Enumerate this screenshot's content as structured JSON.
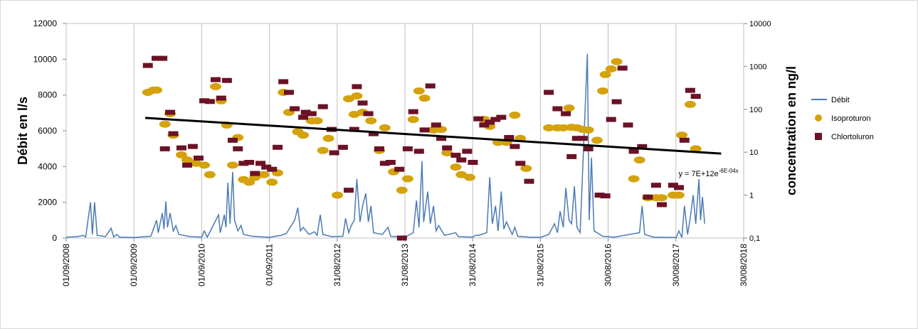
{
  "chart_data": {
    "type": "combo",
    "y_label": "Débit en l/s",
    "y2_label": "concentration en ng/l",
    "xlim": [
      "01/09/2008",
      "30/08/2018"
    ],
    "xticks": [
      "01/09/2008",
      "01/09/2009",
      "01/09/2010",
      "01/09/2011",
      "31/08/2012",
      "31/08/2013",
      "31/08/2014",
      "31/08/2015",
      "30/08/2016",
      "30/08/2017",
      "30/08/2018"
    ],
    "ylim": [
      0,
      12000
    ],
    "yticks": [
      0,
      2000,
      4000,
      6000,
      8000,
      10000,
      12000
    ],
    "y2lim": [
      0.1,
      10000
    ],
    "y2scale": "log",
    "y2ticks": [
      {
        "value": 0.1,
        "label": "0,1"
      },
      1,
      10,
      100,
      1000,
      10000
    ],
    "grid": "x",
    "legend": "right",
    "series": [
      {
        "name": "Débit",
        "type": "line",
        "color": "#4a7ab5",
        "axis": "y",
        "x": [
          "01/09/2008",
          "01/11/2008",
          "01/12/2008",
          "15/12/2008",
          "10/01/2009",
          "20/01/2009",
          "01/02/2009",
          "15/02/2009",
          "01/04/2009",
          "01/05/2009",
          "15/05/2009",
          "01/06/2009",
          "15/06/2009",
          "01/09/2009",
          "01/12/2009",
          "01/01/2010",
          "10/01/2010",
          "01/02/2010",
          "10/02/2010",
          "20/02/2010",
          "01/03/2010",
          "15/03/2010",
          "01/04/2010",
          "15/04/2010",
          "01/05/2010",
          "01/07/2010",
          "01/09/2010",
          "15/09/2010",
          "01/10/2010",
          "01/12/2010",
          "10/12/2010",
          "01/01/2011",
          "10/01/2011",
          "20/01/2011",
          "01/02/2011",
          "15/02/2011",
          "25/02/2011",
          "15/03/2011",
          "01/04/2011",
          "15/04/2011",
          "01/06/2011",
          "01/09/2011",
          "01/11/2011",
          "01/12/2011",
          "15/01/2012",
          "01/02/2012",
          "15/02/2012",
          "01/03/2012",
          "01/04/2012",
          "01/05/2012",
          "15/05/2012",
          "01/06/2012",
          "15/06/2012",
          "01/08/2012",
          "01/10/2012",
          "15/10/2012",
          "01/11/2012",
          "15/11/2012",
          "01/12/2012",
          "15/12/2012",
          "01/01/2013",
          "15/01/2013",
          "01/02/2013",
          "15/02/2013",
          "01/03/2013",
          "15/03/2013",
          "01/05/2013",
          "01/06/2013",
          "15/06/2013",
          "01/09/2013",
          "15/10/2013",
          "01/11/2013",
          "15/11/2013",
          "01/12/2013",
          "10/12/2013",
          "01/01/2014",
          "15/01/2014",
          "01/02/2014",
          "15/02/2014",
          "01/03/2014",
          "01/04/2014",
          "01/06/2014",
          "15/06/2014",
          "01/09/2014",
          "15/09/2014",
          "01/10/2014",
          "15/11/2014",
          "01/12/2014",
          "15/12/2014",
          "01/01/2015",
          "15/01/2015",
          "01/02/2015",
          "15/02/2015",
          "01/03/2015",
          "01/04/2015",
          "15/04/2015",
          "01/05/2015",
          "01/07/2015",
          "01/09/2015",
          "15/10/2015",
          "15/11/2015",
          "01/12/2015",
          "15/12/2015",
          "01/01/2016",
          "15/01/2016",
          "01/02/2016",
          "15/02/2016",
          "01/03/2016",
          "15/03/2016",
          "01/04/2016",
          "10/05/2016",
          "20/05/2016",
          "01/06/2016",
          "15/06/2016",
          "01/08/2016",
          "01/10/2016",
          "15/02/2017",
          "01/03/2017",
          "15/03/2017",
          "01/05/2017",
          "01/09/2017",
          "15/09/2017",
          "01/10/2017",
          "15/10/2017",
          "01/11/2017",
          "15/11/2017",
          "01/12/2017",
          "15/12/2017",
          "01/01/2018",
          "10/01/2018",
          "20/01/2018",
          "01/02/2018"
        ],
        "values": [
          50,
          80,
          150,
          60,
          2000,
          200,
          2000,
          150,
          80,
          550,
          60,
          200,
          50,
          30,
          100,
          1000,
          300,
          1400,
          500,
          2050,
          600,
          1400,
          400,
          700,
          200,
          80,
          50,
          400,
          50,
          1300,
          300,
          1300,
          600,
          3100,
          800,
          3700,
          1000,
          400,
          700,
          200,
          100,
          40,
          150,
          250,
          1000,
          1700,
          400,
          600,
          200,
          350,
          150,
          1300,
          200,
          80,
          100,
          1100,
          300,
          700,
          1000,
          3300,
          900,
          1800,
          2500,
          900,
          1800,
          300,
          200,
          600,
          100,
          50,
          300,
          2100,
          600,
          4300,
          900,
          2600,
          800,
          1800,
          400,
          700,
          150,
          300,
          80,
          50,
          150,
          150,
          300,
          3400,
          800,
          1800,
          400,
          2600,
          500,
          900,
          200,
          600,
          100,
          50,
          40,
          200,
          800,
          300,
          1500,
          600,
          2800,
          1000,
          800,
          2900,
          600,
          300,
          10300,
          1000,
          4500,
          400,
          100,
          50,
          300,
          1800,
          200,
          50,
          30,
          400,
          30,
          1800,
          200,
          1100,
          2400,
          800,
          3300,
          1000,
          2300,
          800
        ]
      },
      {
        "name": "Isoproturon",
        "type": "scatter",
        "marker": "circle",
        "color": "#d4a20c",
        "axis": "y2",
        "x": [
          "15/11/2009",
          "15/12/2009",
          "01/01/2010",
          "15/02/2010",
          "15/03/2010",
          "01/04/2010",
          "15/05/2010",
          "15/06/2010",
          "01/08/2010",
          "15/09/2010",
          "15/10/2010",
          "15/11/2010",
          "15/12/2010",
          "15/01/2011",
          "15/02/2011",
          "15/03/2011",
          "15/04/2011",
          "15/05/2011",
          "15/06/2011",
          "01/08/2011",
          "15/09/2011",
          "15/10/2011",
          "15/11/2011",
          "15/12/2011",
          "01/02/2012",
          "01/03/2012",
          "15/04/2012",
          "15/05/2012",
          "15/06/2012",
          "15/07/2012",
          "01/09/2012",
          "01/11/2012",
          "01/12/2012",
          "15/12/2012",
          "15/01/2013",
          "01/03/2013",
          "15/04/2013",
          "15/05/2013",
          "01/07/2013",
          "15/08/2013",
          "15/09/2013",
          "15/10/2013",
          "15/11/2013",
          "15/12/2013",
          "01/02/2014",
          "15/03/2014",
          "15/04/2014",
          "01/06/2014",
          "01/07/2014",
          "15/08/2014",
          "01/11/2014",
          "01/12/2014",
          "15/01/2015",
          "01/03/2015",
          "15/04/2015",
          "15/05/2015",
          "15/06/2015",
          "15/10/2015",
          "01/12/2015",
          "01/01/2016",
          "01/02/2016",
          "15/02/2016",
          "15/03/2016",
          "15/04/2016",
          "15/05/2016",
          "01/07/2016",
          "01/08/2016",
          "15/08/2016",
          "15/09/2016",
          "15/10/2016",
          "15/01/2017",
          "15/02/2017",
          "01/04/2017",
          "15/05/2017",
          "15/06/2017",
          "15/08/2017",
          "15/09/2017",
          "01/10/2017",
          "15/11/2017",
          "15/12/2017"
        ],
        "values": [
          248,
          280,
          280,
          45,
          79,
          25,
          8.7,
          6.6,
          5.5,
          5,
          3,
          337,
          158,
          43,
          5,
          22,
          2.3,
          2,
          2.6,
          3,
          2,
          3.3,
          248,
          85,
          30,
          25,
          54,
          54,
          11,
          21,
          1,
          176,
          76,
          205,
          85,
          54,
          11,
          37,
          3.5,
          1.3,
          2.4,
          58,
          268,
          182,
          33,
          34,
          9.7,
          4.5,
          3,
          2.6,
          58,
          40,
          17,
          17,
          73,
          21,
          4.2,
          37,
          37,
          37,
          107,
          38,
          37,
          34,
          33,
          19,
          268,
          646,
          871,
          1288,
          2.4,
          6.6,
          0.87,
          0.87,
          0.87,
          1,
          1,
          25,
          130,
          12
        ]
      },
      {
        "name": "Chlortoluron",
        "type": "scatter",
        "marker": "square",
        "color": "#6b1226",
        "axis": "y2",
        "x": [
          "15/11/2009",
          "01/01/2010",
          "01/02/2010",
          "15/02/2010",
          "15/03/2010",
          "01/04/2010",
          "15/05/2010",
          "15/06/2010",
          "15/07/2010",
          "15/08/2010",
          "15/09/2010",
          "15/10/2010",
          "15/11/2010",
          "15/12/2010",
          "15/01/2011",
          "15/02/2011",
          "15/03/2011",
          "15/04/2011",
          "15/05/2011",
          "15/06/2011",
          "15/07/2011",
          "15/08/2011",
          "15/09/2011",
          "15/10/2011",
          "15/11/2011",
          "15/12/2011",
          "15/01/2012",
          "01/03/2012",
          "15/03/2012",
          "15/04/2012",
          "15/06/2012",
          "01/08/2012",
          "15/08/2012",
          "01/10/2012",
          "01/11/2012",
          "01/12/2012",
          "15/12/2012",
          "15/01/2013",
          "15/02/2013",
          "15/03/2013",
          "15/04/2013",
          "15/05/2013",
          "15/06/2013",
          "01/08/2013",
          "15/08/2013",
          "15/09/2013",
          "15/10/2013",
          "15/11/2013",
          "15/12/2013",
          "15/01/2014",
          "15/02/2014",
          "15/03/2014",
          "15/04/2014",
          "01/06/2014",
          "01/07/2014",
          "01/08/2014",
          "01/09/2014",
          "01/10/2014",
          "01/11/2014",
          "01/12/2014",
          "01/01/2015",
          "01/02/2015",
          "15/03/2015",
          "15/04/2015",
          "15/05/2015",
          "01/07/2015",
          "15/10/2015",
          "01/12/2015",
          "15/01/2016",
          "15/02/2016",
          "15/03/2016",
          "15/04/2016",
          "15/05/2016",
          "15/07/2016",
          "15/08/2016",
          "15/09/2016",
          "15/10/2016",
          "15/11/2016",
          "15/12/2016",
          "15/01/2017",
          "01/03/2017",
          "01/04/2017",
          "15/05/2017",
          "15/06/2017",
          "15/08/2017",
          "15/09/2017",
          "15/10/2017",
          "15/11/2017",
          "15/12/2017"
        ],
        "values": [
          1050,
          1540,
          1540,
          12,
          85,
          27,
          12.6,
          5,
          13.6,
          7.3,
          158,
          152,
          490,
          182,
          470,
          19,
          12,
          5.5,
          5.8,
          3.2,
          5.5,
          4.5,
          4,
          13,
          440,
          248,
          103,
          65,
          85,
          79,
          115,
          34,
          9.7,
          13,
          1.3,
          34,
          337,
          140,
          79,
          27,
          12,
          5.5,
          5.8,
          4,
          0.1,
          12,
          88,
          10.5,
          33,
          350,
          43,
          21,
          12.6,
          8.5,
          6.6,
          10.5,
          5.8,
          60,
          43,
          50,
          58,
          65,
          22,
          13.6,
          5.5,
          2.1,
          248,
          103,
          79,
          7.9,
          21,
          21,
          12,
          1,
          0.96,
          58,
          150,
          910,
          43,
          10.5,
          13.5,
          0.9,
          1.7,
          0.6,
          1.7,
          1.5,
          19,
          276,
          200
        ]
      }
    ],
    "trendline": {
      "type": "line",
      "color": "#000000",
      "axis": "y2",
      "x": [
        "01/11/2009",
        "01/05/2018"
      ],
      "values": [
        63,
        9.3
      ]
    },
    "trendline_label": "y = 7E+12e",
    "trendline_exponent": "-6E-04x"
  }
}
